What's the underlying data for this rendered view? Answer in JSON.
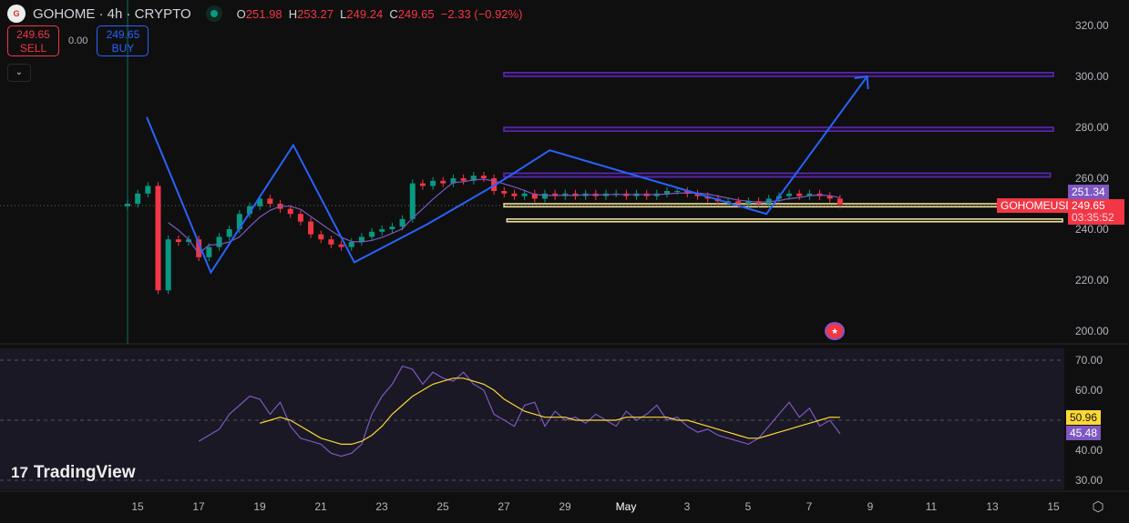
{
  "header": {
    "symbol": "GOHOME · 4h · CRYPTO",
    "logo_text": "G",
    "open_label": "O",
    "open": "251.98",
    "high_label": "H",
    "high": "253.27",
    "low_label": "L",
    "low": "249.24",
    "close_label": "C",
    "close": "249.65",
    "change": "−2.33 (−0.92%)"
  },
  "trade": {
    "sell_price": "249.65",
    "sell_label": "SELL",
    "spread": "0.00",
    "buy_price": "249.65",
    "buy_label": "BUY",
    "collapse_icon": "chevron-down-icon"
  },
  "branding": {
    "logo": "TradingView"
  },
  "price_labels": {
    "symbol_tag": "GOHOMEUSD",
    "last_price": "249.65",
    "countdown": "03:35:52",
    "ma_price": "251.34"
  },
  "rsi_labels": {
    "ma_value": "50.96",
    "rsi_value": "45.48"
  },
  "colors": {
    "up": "#089981",
    "down": "#f23645",
    "rsi": "#7e57c2",
    "rsi_ma": "#fdd835",
    "drawing": "#2962ff",
    "zone": "#5b2bb5",
    "support": "#f5e6a3"
  },
  "chart_data": [
    {
      "type": "candlestick",
      "interval": "4h",
      "start": "Apr 14 16:00",
      "step_hours": 8,
      "closes": [
        250,
        254,
        257,
        216,
        236,
        235,
        236,
        229,
        233,
        237,
        240,
        246,
        249,
        252,
        250,
        248,
        246,
        243,
        238,
        236,
        234,
        233,
        235,
        237,
        239,
        240,
        241,
        244,
        258,
        257,
        259,
        258,
        260,
        259,
        261,
        260,
        255,
        254,
        253,
        254,
        252,
        254,
        253,
        254,
        253,
        254,
        253,
        254,
        254,
        253,
        254,
        253,
        254,
        255,
        255,
        254,
        253,
        252,
        251,
        251,
        250,
        251,
        250,
        252,
        253,
        254,
        253,
        254,
        253,
        252,
        249.65
      ],
      "y_ticks": [
        200,
        220,
        240,
        260,
        280,
        300,
        320
      ],
      "ylim": [
        200,
        320
      ],
      "x_ticks": [
        "15",
        "17",
        "19",
        "21",
        "23",
        "25",
        "27",
        "29",
        "May",
        "3",
        "5",
        "7",
        "9",
        "11",
        "13",
        "15"
      ],
      "zones": [
        {
          "price": [
            300,
            301.5
          ],
          "from": "Apr 27",
          "to": "May 15"
        },
        {
          "price": [
            278.5,
            280
          ],
          "from": "Apr 27",
          "to": "May 15"
        },
        {
          "price": [
            260.5,
            262
          ],
          "from": "Apr 27",
          "to": "May 14.9"
        },
        {
          "price": [
            248.8,
            250
          ],
          "from": "Apr 27",
          "to": "May 15.3",
          "kind": "support"
        },
        {
          "price": [
            243,
            244
          ],
          "from": "Apr 27.1",
          "to": "May 15.3",
          "kind": "support"
        }
      ],
      "zigzag": [
        [
          15.3,
          284
        ],
        [
          17.4,
          223
        ],
        [
          20.1,
          273
        ],
        [
          22.1,
          227
        ],
        [
          24.5,
          242
        ],
        [
          26.8,
          258
        ],
        [
          28.5,
          271
        ],
        [
          35.6,
          246
        ],
        [
          38.9,
          300
        ]
      ]
    },
    {
      "type": "line",
      "name": "RSI",
      "start_index": 7,
      "rsi": [
        43,
        45,
        47,
        52,
        55,
        58,
        57,
        52,
        56,
        48,
        44,
        43,
        42,
        39,
        38,
        39,
        42,
        52,
        58,
        62,
        68,
        67,
        62,
        66,
        64,
        63,
        66,
        62,
        60,
        52,
        50,
        48,
        55,
        56,
        48,
        53,
        50,
        51,
        49,
        52,
        50,
        48,
        53,
        50,
        52,
        55,
        50,
        51,
        48,
        46,
        47,
        45,
        44,
        43,
        42,
        44,
        48,
        52,
        56,
        51,
        54,
        48,
        50,
        45.48
      ],
      "ma_start_index": 13,
      "ma": [
        49,
        50,
        51,
        50,
        48,
        46,
        44,
        43,
        42,
        42,
        43,
        45,
        48,
        52,
        55,
        58,
        60,
        62,
        63,
        64,
        64,
        63,
        62,
        60,
        57,
        55,
        53,
        52,
        51,
        51,
        51,
        50,
        50,
        50,
        50,
        50,
        51,
        51,
        51,
        51,
        51,
        50,
        50,
        49,
        48,
        47,
        46,
        45,
        44,
        44,
        45,
        46,
        47,
        48,
        49,
        50,
        51,
        50.96
      ],
      "y_ticks": [
        30,
        40,
        50,
        60,
        70
      ],
      "ylim": [
        30,
        70
      ],
      "bands": [
        30,
        50,
        70
      ]
    }
  ]
}
